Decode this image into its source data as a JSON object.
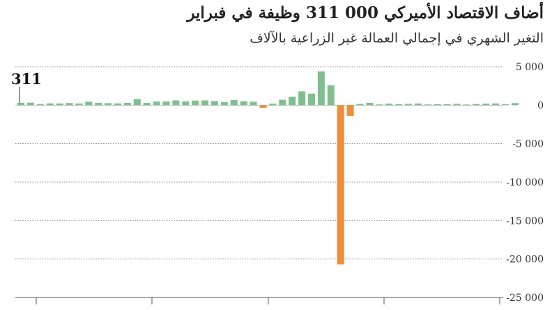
{
  "title": "أضاف الاقتصاد الأميركي  000 311 وظيفة في فبراير",
  "subtitle": "التغير الشهري في إجمالي العمالة غير الزراعية بالآلاف",
  "colors": {
    "positive": "#7fbf8e",
    "negative": "#f28c38",
    "grid": "#888888",
    "axis": "#555555"
  },
  "chart_data": {
    "type": "bar",
    "title": "أضاف الاقتصاد الأميركي  000 311 وظيفة في فبراير",
    "subtitle": "التغير الشهري في إجمالي العمالة غير الزراعية بالآلاف",
    "xlabel": "",
    "ylabel": "",
    "ylim": [
      -25000,
      5000
    ],
    "y_ticks": [
      5000,
      0,
      -5000,
      -10000,
      -15000,
      -20000,
      -25000
    ],
    "y_tick_labels": [
      "5 000",
      "0",
      "-5 000",
      "-10 000",
      "-15 000",
      "-20 000",
      "-25 000"
    ],
    "grid": true,
    "values": [
      311,
      330,
      150,
      240,
      230,
      280,
      220,
      460,
      300,
      270,
      240,
      300,
      800,
      300,
      480,
      480,
      620,
      500,
      600,
      620,
      540,
      400,
      680,
      520,
      450,
      -350,
      200,
      700,
      1100,
      1800,
      1500,
      4400,
      2600,
      -20700,
      -1400,
      160,
      310,
      100,
      200,
      120,
      170,
      220,
      100,
      130,
      120,
      180,
      90,
      150,
      200,
      230,
      140,
      270
    ],
    "annotation": {
      "text": "311",
      "value": 311,
      "position": "first-bar"
    }
  }
}
